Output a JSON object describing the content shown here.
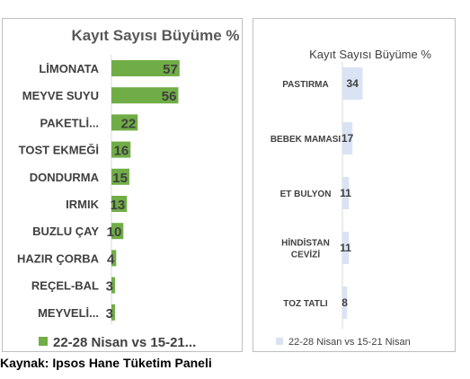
{
  "chart_data": [
    {
      "type": "bar",
      "orientation": "horizontal",
      "title": "Kayıt Sayısı Büyüme %",
      "categories": [
        "LİMONATA",
        "MEYVE SUYU",
        "PAKETLİ...",
        "TOST EKMEĞİ",
        "DONDURMA",
        "IRMIK",
        "BUZLU ÇAY",
        "HAZIR ÇORBA",
        "REÇEL-BAL",
        "MEYVELİ..."
      ],
      "series": [
        {
          "name": "22-28 Nisan vs 15-21...",
          "values": [
            57,
            56,
            22,
            16,
            15,
            13,
            10,
            4,
            3,
            3
          ]
        }
      ],
      "color": "#70ad47",
      "legend": "bottom",
      "grid": false,
      "xlim": [
        0,
        100
      ]
    },
    {
      "type": "bar",
      "orientation": "vertical-list",
      "title": "Kayıt Sayısı Büyüme %",
      "categories": [
        "PASTIRMA",
        "BEBEK MAMASI",
        "ET BULYON",
        "HİNDİSTAN CEVİZİ",
        "TOZ TATLI"
      ],
      "category_lines": [
        [
          "PASTIRMA"
        ],
        [
          "BEBEK MAMASI"
        ],
        [
          "ET BULYON"
        ],
        [
          "HİNDİSTAN",
          "CEVİZİ"
        ],
        [
          "TOZ TATLI"
        ]
      ],
      "series": [
        {
          "name": "22-28 Nisan vs 15-21 Nisan",
          "values": [
            34,
            17,
            11,
            11,
            8
          ]
        }
      ],
      "color": "#dae3f3",
      "legend": "bottom",
      "grid": false,
      "xlim": [
        0,
        100
      ]
    }
  ],
  "source": "Kaynak: Ipsos Hane Tüketim Paneli"
}
